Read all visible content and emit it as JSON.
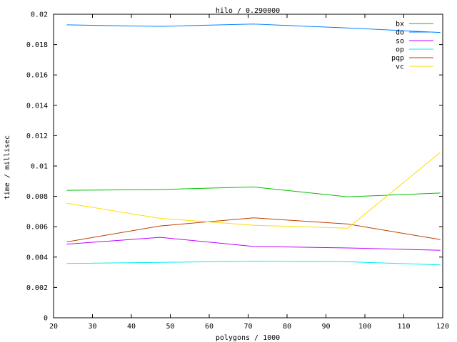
{
  "chart_data": {
    "type": "line",
    "title": "hilo / 0.290000",
    "xlabel": "polygons / 1000",
    "ylabel": "time / millisec",
    "xlim": [
      20,
      120
    ],
    "ylim": [
      0,
      0.02
    ],
    "xticks": [
      "20",
      "30",
      "40",
      "50",
      "60",
      "70",
      "80",
      "90",
      "100",
      "110",
      "120"
    ],
    "yticks": [
      "0",
      "0.002",
      "0.004",
      "0.006",
      "0.008",
      "0.01",
      "0.012",
      "0.014",
      "0.016",
      "0.018",
      "0.02"
    ],
    "grid": false,
    "legend_position": "top-right",
    "x": [
      23.4,
      47.4,
      71.4,
      95.6,
      119.4
    ],
    "series": [
      {
        "name": "bx",
        "color": "#00c000",
        "values": [
          0.0084,
          0.00845,
          0.00862,
          0.00797,
          0.00822
        ]
      },
      {
        "name": "do",
        "color": "#0080ff",
        "values": [
          0.0193,
          0.0192,
          0.01935,
          0.0191,
          0.0188
        ]
      },
      {
        "name": "so",
        "color": "#c000ff",
        "values": [
          0.00485,
          0.0053,
          0.0047,
          0.0046,
          0.00445
        ]
      },
      {
        "name": "op",
        "color": "#00eeee",
        "values": [
          0.00358,
          0.00365,
          0.00373,
          0.00369,
          0.00349
        ]
      },
      {
        "name": "pqp",
        "color": "#c04000",
        "values": [
          0.005,
          0.00605,
          0.00658,
          0.00618,
          0.00515
        ]
      },
      {
        "name": "vc",
        "color": "#ffdd00",
        "values": [
          0.00755,
          0.00655,
          0.0061,
          0.0059,
          0.0109
        ]
      }
    ]
  }
}
